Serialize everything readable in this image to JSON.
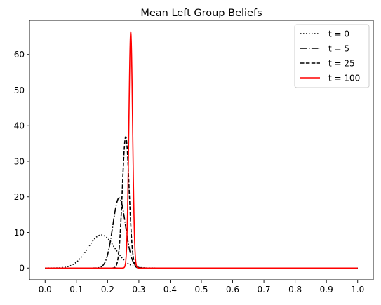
{
  "chart_data": {
    "type": "line",
    "title": "Mean Left Group Beliefs",
    "xlabel": "",
    "ylabel": "",
    "xlim": [
      -0.05,
      1.05
    ],
    "ylim": [
      -3.3,
      69.6
    ],
    "xticks": [
      "0.0",
      "0.1",
      "0.2",
      "0.3",
      "0.4",
      "0.5",
      "0.6",
      "0.7",
      "0.8",
      "0.9",
      "1.0"
    ],
    "yticks": [
      "0",
      "10",
      "20",
      "30",
      "40",
      "50",
      "60"
    ],
    "grid": false,
    "legend_position": "top-right",
    "series": [
      {
        "name": "t = 0",
        "color": "#000000",
        "style": "dotted",
        "distribution": "gaussian",
        "peak_x": 0.18,
        "peak_y": 9.3,
        "sigma": 0.043
      },
      {
        "name": "t = 5",
        "color": "#000000",
        "style": "dashdot",
        "distribution": "gaussian",
        "peak_x": 0.237,
        "peak_y": 19.7,
        "sigma": 0.0203
      },
      {
        "name": "t = 25",
        "color": "#000000",
        "style": "dashed",
        "distribution": "gaussian",
        "peak_x": 0.258,
        "peak_y": 36.9,
        "sigma": 0.0108
      },
      {
        "name": "t = 100",
        "color": "#ff0000",
        "style": "solid",
        "distribution": "gaussian",
        "peak_x": 0.274,
        "peak_y": 66.4,
        "sigma": 0.006
      }
    ]
  }
}
